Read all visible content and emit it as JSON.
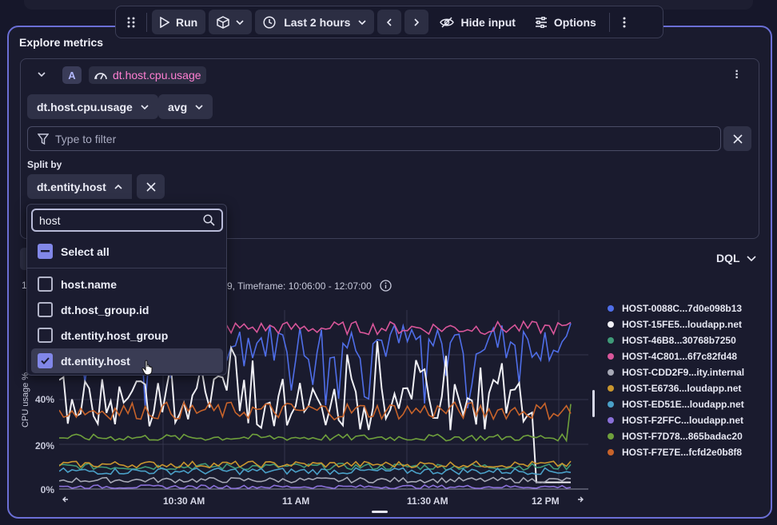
{
  "toolbar": {
    "run_label": "Run",
    "timeframe_label": "Last 2 hours",
    "hide_input_label": "Hide input",
    "options_label": "Options"
  },
  "panel": {
    "title": "Explore metrics"
  },
  "query": {
    "badge": "A",
    "metric_key": "dt.host.cpu.usage",
    "metric_select": "dt.host.cpu.usage",
    "aggregation": "avg",
    "filter_placeholder": "Type to filter",
    "split_label": "Split by",
    "split_value": "dt.entity.host"
  },
  "dropdown": {
    "search_value": "host",
    "select_all": "Select all",
    "options": [
      {
        "label": "host.name",
        "checked": false
      },
      {
        "label": "dt.host_group.id",
        "checked": false
      },
      {
        "label": "dt.entity.host_group",
        "checked": false
      },
      {
        "label": "dt.entity.host",
        "checked": true
      }
    ]
  },
  "results": {
    "dql_label": "DQL",
    "sub_label": "1",
    "timeframe_text": "9, Timeframe: 10:06:00 - 12:07:00"
  },
  "chart_data": {
    "type": "line",
    "title": "",
    "ylabel": "CPU usage %",
    "xlabel": "",
    "ylim": [
      0,
      100
    ],
    "yticks": [
      "0%",
      "20%",
      "40%"
    ],
    "xticks": [
      "10:30 AM",
      "11 AM",
      "11:30 AM",
      "12 PM"
    ],
    "series": [
      {
        "name": "HOST-0088C...7d0e098b13",
        "color": "#4f6ee8",
        "mean": 66,
        "amp": 9
      },
      {
        "name": "HOST-15FE5...loudapp.net",
        "color": "#f0f0f5",
        "mean": 38,
        "amp": 12
      },
      {
        "name": "HOST-46B8...30768b7250",
        "color": "#3f9a78",
        "mean": 10,
        "amp": 1.5
      },
      {
        "name": "HOST-4C801...6f7c82fd48",
        "color": "#d9569a",
        "mean": 72,
        "amp": 3
      },
      {
        "name": "HOST-CDD2F9...ity.internal",
        "color": "#a7a9b6",
        "mean": 4,
        "amp": 1.2
      },
      {
        "name": "HOST-E6736...loudapp.net",
        "color": "#c9962e",
        "mean": 11,
        "amp": 1.5
      },
      {
        "name": "HOST-ED51E...loudapp.net",
        "color": "#4aa0c8",
        "mean": 8,
        "amp": 1.5
      },
      {
        "name": "HOST-F2FFC...loudapp.net",
        "color": "#8a70d8",
        "mean": 1,
        "amp": 0.8
      },
      {
        "name": "HOST-F7D78...865badac20",
        "color": "#6fa03c",
        "mean": 23,
        "amp": 1.5
      },
      {
        "name": "HOST-F7E7E...fcfd2e0b8f8",
        "color": "#c8632a",
        "mean": 35,
        "amp": 4
      }
    ]
  }
}
